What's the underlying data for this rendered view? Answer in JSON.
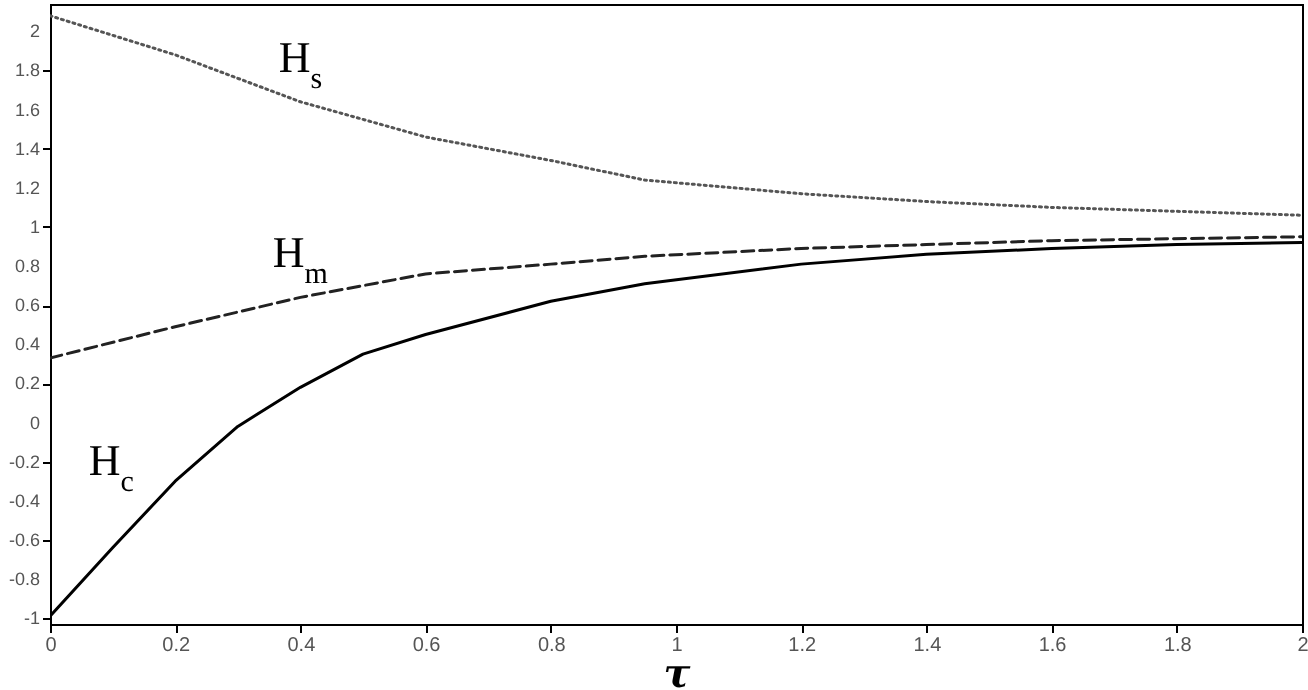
{
  "chart_data": {
    "type": "line",
    "xlabel": "τ",
    "xlim": [
      0,
      2
    ],
    "xticks": [
      0,
      0.2,
      0.4,
      0.6,
      0.8,
      1,
      1.2,
      1.4,
      1.6,
      1.8,
      2
    ],
    "ylim": [
      -1.03,
      2.14
    ],
    "yticks": [
      -1,
      -0.8,
      -0.6,
      -0.4,
      -0.2,
      0,
      0.2,
      0.4,
      0.6,
      0.8,
      1,
      1.2,
      1.4,
      1.6,
      1.8,
      2
    ],
    "grid": false,
    "series": [
      {
        "name": "H$_{s}$",
        "color": "#555555",
        "line_style": "dotted",
        "x": [
          0,
          0.2,
          0.4,
          0.6,
          0.8,
          0.95,
          1.2,
          1.4,
          1.6,
          1.8,
          2
        ],
        "values": [
          2.08,
          1.88,
          1.64,
          1.46,
          1.34,
          1.24,
          1.17,
          1.13,
          1.1,
          1.08,
          1.06
        ]
      },
      {
        "name": "H$_{m}$",
        "color": "#222222",
        "line_style": "dashed",
        "x": [
          0,
          0.2,
          0.4,
          0.6,
          0.8,
          0.95,
          1.2,
          1.4,
          1.6,
          2
        ],
        "values": [
          0.33,
          0.49,
          0.64,
          0.76,
          0.81,
          0.85,
          0.89,
          0.91,
          0.93,
          0.95
        ]
      },
      {
        "name": "H$_{c}$",
        "color": "#000000",
        "line_style": "solid",
        "x": [
          0,
          0.1,
          0.2,
          0.3,
          0.4,
          0.5,
          0.6,
          0.8,
          0.95,
          1.2,
          1.4,
          1.6,
          1.8,
          2
        ],
        "values": [
          -0.99,
          -0.64,
          -0.3,
          -0.02,
          0.18,
          0.35,
          0.45,
          0.62,
          0.71,
          0.81,
          0.86,
          0.89,
          0.91,
          0.92
        ]
      }
    ]
  }
}
